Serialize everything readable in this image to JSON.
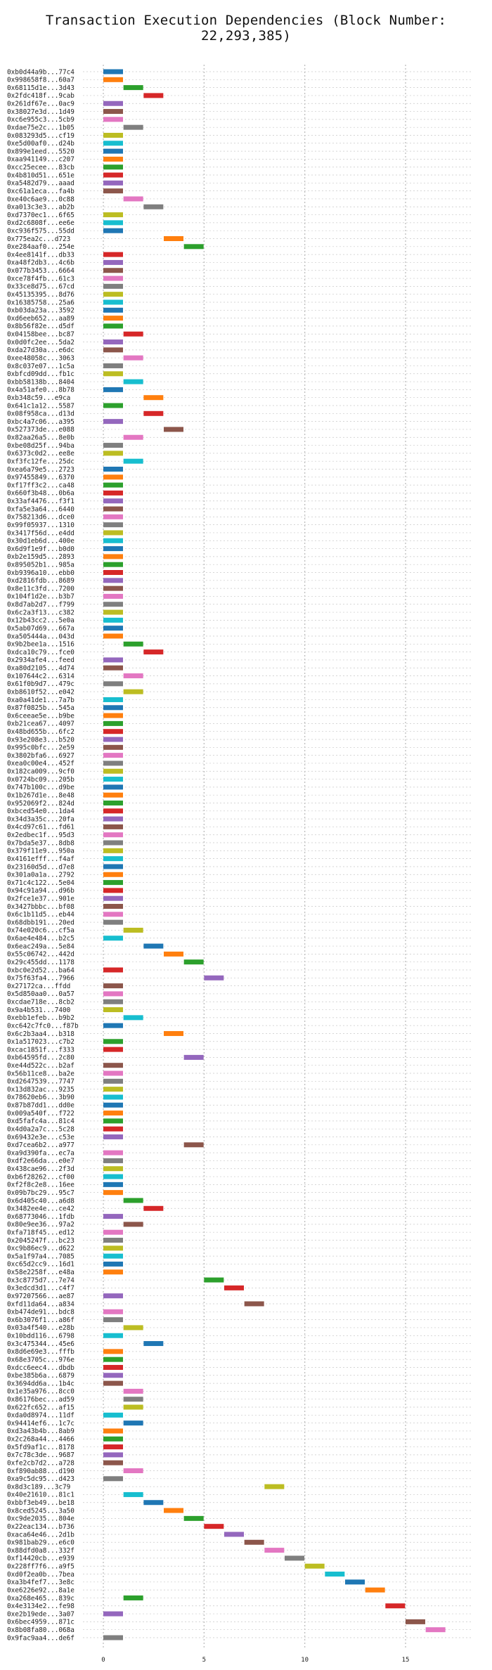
{
  "chart_data": {
    "type": "bar",
    "orientation": "horizontal",
    "title": "Transaction Execution Dependencies (Block Number: 22,293,385)",
    "xlabel": "",
    "ylabel": "",
    "xlim": [
      0,
      17.5
    ],
    "xticks": [
      0,
      5,
      10,
      15
    ],
    "grid": {
      "vertical": true,
      "horizontal": true,
      "style": "dotted"
    },
    "palette": [
      "#1f77b4",
      "#ff7f0e",
      "#2ca02c",
      "#d62728",
      "#9467bd",
      "#8c564b",
      "#e377c2",
      "#7f7f7f",
      "#bcbd22",
      "#17becf"
    ],
    "rows": [
      [
        "0xb0d44a9b...77c4",
        0
      ],
      [
        "0x998658f8...60a7",
        0
      ],
      [
        "0x68115d1e...3d43",
        1
      ],
      [
        "0x2fdc418f...9cab",
        2
      ],
      [
        "0x261df67e...0ac9",
        0
      ],
      [
        "0x38027e3d...1d49",
        0
      ],
      [
        "0xc6e955c3...5cb9",
        0
      ],
      [
        "0xdae75e2c...1b05",
        1
      ],
      [
        "0x083293d5...cf19",
        0
      ],
      [
        "0xe5d00af0...d24b",
        0
      ],
      [
        "0x899e1eed...5520",
        0
      ],
      [
        "0xaa941149...c207",
        0
      ],
      [
        "0xcc25ecee...83cb",
        0
      ],
      [
        "0x4b810d51...651e",
        0
      ],
      [
        "0xa5482d79...aaad",
        0
      ],
      [
        "0xc61a1eca...fa4b",
        0
      ],
      [
        "0xe40c6ae9...0c88",
        1
      ],
      [
        "0xa013c3e3...ab2b",
        2
      ],
      [
        "0xd7370ec1...6f65",
        0
      ],
      [
        "0xd2c6808f...ee6e",
        0
      ],
      [
        "0xc936f575...55dd",
        0
      ],
      [
        "0x775ea2c...d723",
        3
      ],
      [
        "0xe284aaf0...254e",
        4
      ],
      [
        "0x4ee8141f...db33",
        0
      ],
      [
        "0xa48f2db3...4c6b",
        0
      ],
      [
        "0x077b3453...6664",
        0
      ],
      [
        "0xce78f4fb...61c3",
        0
      ],
      [
        "0x33ce8d75...67cd",
        0
      ],
      [
        "0x45135395...8d76",
        0
      ],
      [
        "0x16385758...25a6",
        0
      ],
      [
        "0xb03da23a...3592",
        0
      ],
      [
        "0xd6eeb652...aa89",
        0
      ],
      [
        "0x8b56f82e...d5df",
        0
      ],
      [
        "0x04158bee...bc87",
        1
      ],
      [
        "0x0d0fc2ee...5da2",
        0
      ],
      [
        "0xda27d30a...e6dc",
        0
      ],
      [
        "0xee48058c...3063",
        1
      ],
      [
        "0x8c037e07...1c5a",
        0
      ],
      [
        "0xbfcd09dd...fb1c",
        0
      ],
      [
        "0xbb58138b...8404",
        1
      ],
      [
        "0x4a51afe0...8b78",
        0
      ],
      [
        "0xb348c59...e9ca",
        2
      ],
      [
        "0x641c1a12...5587",
        0
      ],
      [
        "0x08f958ca...d13d",
        2
      ],
      [
        "0xbc4a7c06...a395",
        0
      ],
      [
        "0x527373de...e088",
        3
      ],
      [
        "0x82aa26a5...8e0b",
        1
      ],
      [
        "0xbe08d25f...94ba",
        0
      ],
      [
        "0x6373c0d2...ee8e",
        0
      ],
      [
        "0xf3fc12fe...25dc",
        1
      ],
      [
        "0xea6a79e5...2723",
        0
      ],
      [
        "0x97455849...6370",
        0
      ],
      [
        "0xf17ff3c2...ca48",
        0
      ],
      [
        "0x660f3b48...0b6a",
        0
      ],
      [
        "0x33af4476...f3f1",
        0
      ],
      [
        "0xfa5e3a64...6440",
        0
      ],
      [
        "0x758213d6...dce0",
        0
      ],
      [
        "0x99f05937...1310",
        0
      ],
      [
        "0x3417f56d...e4dd",
        0
      ],
      [
        "0x30d1eb6d...400e",
        0
      ],
      [
        "0x6d9f1e9f...b0d0",
        0
      ],
      [
        "0xb2e159d5...2893",
        0
      ],
      [
        "0x895052b1...985a",
        0
      ],
      [
        "0xb9396a10...ebb0",
        0
      ],
      [
        "0xd2816fdb...8689",
        0
      ],
      [
        "0x8e11c3fd...7200",
        0
      ],
      [
        "0x104f1d2e...b3b7",
        0
      ],
      [
        "0x8d7ab2d7...f799",
        0
      ],
      [
        "0x6c2a3f13...c382",
        0
      ],
      [
        "0x12b43cc2...5e0a",
        0
      ],
      [
        "0x5ab07d69...667a",
        0
      ],
      [
        "0xa505444a...043d",
        0
      ],
      [
        "0x9b2bee1a...1516",
        1
      ],
      [
        "0xdca10c79...fce0",
        2
      ],
      [
        "0x2934afe4...feed",
        0
      ],
      [
        "0xa80d2105...4d74",
        0
      ],
      [
        "0x107644c2...6314",
        1
      ],
      [
        "0x61f0b9d7...479c",
        0
      ],
      [
        "0xb8610f52...e042",
        1
      ],
      [
        "0xa0a41de1...7a7b",
        0
      ],
      [
        "0x87f0825b...545a",
        0
      ],
      [
        "0x6ceeae5e...b9be",
        0
      ],
      [
        "0xb21cea67...4097",
        0
      ],
      [
        "0x48bd655b...6fc2",
        0
      ],
      [
        "0x93e208e3...b520",
        0
      ],
      [
        "0x995c0bfc...2e59",
        0
      ],
      [
        "0x3802bfa6...6927",
        0
      ],
      [
        "0xea0c00e4...452f",
        0
      ],
      [
        "0x182ca009...9cf0",
        0
      ],
      [
        "0x0724bc09...205b",
        0
      ],
      [
        "0x747b100c...d9be",
        0
      ],
      [
        "0x1b267d1e...8e48",
        0
      ],
      [
        "0x952069f2...824d",
        0
      ],
      [
        "0xbced54e0...1da4",
        0
      ],
      [
        "0x34d3a35c...20fa",
        0
      ],
      [
        "0x4cd97c61...fd61",
        0
      ],
      [
        "0x2edbec1f...95d3",
        0
      ],
      [
        "0x7bda5e37...8db8",
        0
      ],
      [
        "0x379f11e9...950a",
        0
      ],
      [
        "0x4161efff...f4af",
        0
      ],
      [
        "0x23160d5d...d7e8",
        0
      ],
      [
        "0x301a0a1a...2792",
        0
      ],
      [
        "0x71c4c122...5e04",
        0
      ],
      [
        "0x94c91a94...d96b",
        0
      ],
      [
        "0x2fce1e37...901e",
        0
      ],
      [
        "0x3427bbbc...bf08",
        0
      ],
      [
        "0x6c1b11d5...eb44",
        0
      ],
      [
        "0x68dbb191...20ed",
        0
      ],
      [
        "0x74e020c6...cf5a",
        1
      ],
      [
        "0x6ae4e484...b2c5",
        0
      ],
      [
        "0x6eac249a...5e84",
        2
      ],
      [
        "0x55c06742...442d",
        3
      ],
      [
        "0x29c455dd...1178",
        4
      ],
      [
        "0xbc0e2d52...ba64",
        0
      ],
      [
        "0x75f63fa4...7966",
        5
      ],
      [
        "0x27172ca...ffdd",
        0
      ],
      [
        "0x5d850aa0...0a57",
        0
      ],
      [
        "0xcdae718e...8cb2",
        0
      ],
      [
        "0x9a4b531...7400",
        0
      ],
      [
        "0xebb1efeb...b9b2",
        1
      ],
      [
        "0xc642c7fc0...f87b",
        0
      ],
      [
        "0x6c2b3aa4...b318",
        3
      ],
      [
        "0x1a517023...c7b2",
        0
      ],
      [
        "0xcac1851f...f333",
        0
      ],
      [
        "0xb64595fd...2c80",
        4
      ],
      [
        "0xe44d522c...b2af",
        0
      ],
      [
        "0x56b11ce8...ba2e",
        0
      ],
      [
        "0xd2647539...7747",
        0
      ],
      [
        "0x13d832ac...9235",
        0
      ],
      [
        "0x78620eb6...3b90",
        0
      ],
      [
        "0x87b87dd1...dd0e",
        0
      ],
      [
        "0x009a540f...f722",
        0
      ],
      [
        "0xd5fafc4a...81c4",
        0
      ],
      [
        "0x4d0a2a7c...5c28",
        0
      ],
      [
        "0x69432e3e...c53e",
        0
      ],
      [
        "0xd7cea6b2...a977",
        4
      ],
      [
        "0xa9d390fa...ec7a",
        0
      ],
      [
        "0xdf2e66da...e0e7",
        0
      ],
      [
        "0x438cae96...2f3d",
        0
      ],
      [
        "0xb6f28262...cf00",
        0
      ],
      [
        "0xf2f8c2e8...16ee",
        0
      ],
      [
        "0x09b7bc29...95c7",
        0
      ],
      [
        "0x6d405c40...a6d8",
        1
      ],
      [
        "0x3482ee4e...ce42",
        2
      ],
      [
        "0x68773046...1fdb",
        0
      ],
      [
        "0x80e9ee36...97a2",
        1
      ],
      [
        "0xfa718f45...ed12",
        0
      ],
      [
        "0x2045247f...bc23",
        0
      ],
      [
        "0xc9b86ec9...d622",
        0
      ],
      [
        "0x5a1f97a4...7085",
        0
      ],
      [
        "0xc65d2cc9...16d1",
        0
      ],
      [
        "0x58e2258f...e48a",
        0
      ],
      [
        "0x3c8775d7...7e74",
        5
      ],
      [
        "0x3edcd3d1...c4f7",
        6
      ],
      [
        "0x97207566...ae87",
        0
      ],
      [
        "0xfd11da64...a834",
        7
      ],
      [
        "0xb474de91...bdc8",
        0
      ],
      [
        "0x6b3076f1...a86f",
        0
      ],
      [
        "0x03a4f540...e28b",
        1
      ],
      [
        "0x10bdd116...6798",
        0
      ],
      [
        "0x3c475344...45e6",
        2
      ],
      [
        "0x8d6e69e3...fffb",
        0
      ],
      [
        "0x68e3705c...976e",
        0
      ],
      [
        "0xdcc6eec4...dbdb",
        0
      ],
      [
        "0xbe385b6a...6879",
        0
      ],
      [
        "0x3694dd6a...1b4c",
        0
      ],
      [
        "0x1e35a976...8cc0",
        1
      ],
      [
        "0x86176bec...ad59",
        1
      ],
      [
        "0x622fc652...af15",
        1
      ],
      [
        "0xda0d8974...11df",
        0
      ],
      [
        "0x94414ef6...1c7c",
        1
      ],
      [
        "0xd3a43b4b...8ab9",
        0
      ],
      [
        "0x2c268a44...4466",
        0
      ],
      [
        "0x5fd9af1c...8178",
        0
      ],
      [
        "0x7c78c3de...9687",
        0
      ],
      [
        "0xfe2cb7d2...a728",
        0
      ],
      [
        "0xf890ab88...d190",
        1
      ],
      [
        "0xa9c5dc95...d423",
        0
      ],
      [
        "0x8d3c189...3c79",
        8
      ],
      [
        "0x40e21610...81c1",
        1
      ],
      [
        "0xbbf3eb49...be18",
        2
      ],
      [
        "0x8ced5245...3a50",
        3
      ],
      [
        "0xc9de2035...804e",
        4
      ],
      [
        "0x22eac134...b736",
        5
      ],
      [
        "0xaca64e46...2d1b",
        6
      ],
      [
        "0x981bab29...e6c0",
        7
      ],
      [
        "0x88dfd0a8...332f",
        8
      ],
      [
        "0xf14420cb...e939",
        9
      ],
      [
        "0x228ff7f6...a9f5",
        10
      ],
      [
        "0xd0f2ea0b...7bea",
        11
      ],
      [
        "0xa3b4fef7...3e8c",
        12
      ],
      [
        "0xe6226e92...8a1e",
        13
      ],
      [
        "0xa268e465...839c",
        1
      ],
      [
        "0x4e3134e2...fe98",
        14
      ],
      [
        "0xe2b19ede...3a07",
        0
      ],
      [
        "0x6bec4959...871c",
        15
      ],
      [
        "0x8b08fa80...068a",
        16
      ],
      [
        "0x9fac9aa4...de6f",
        0
      ]
    ]
  }
}
